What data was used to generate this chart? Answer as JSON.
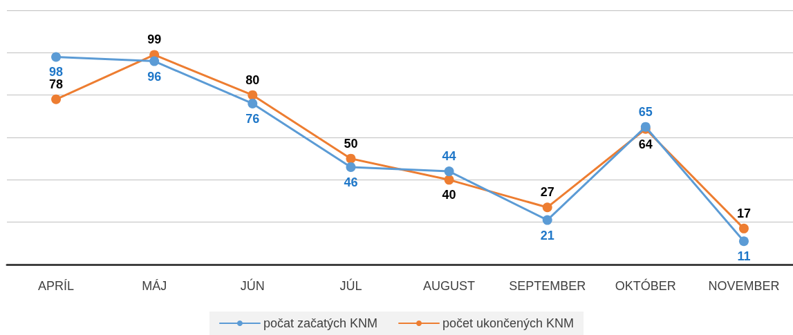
{
  "chart_data": {
    "type": "line",
    "categories": [
      "APRÍL",
      "MÁJ",
      "JÚN",
      "JÚL",
      "AUGUST",
      "SEPTEMBER",
      "OKTÓBER",
      "NOVEMBER"
    ],
    "series": [
      {
        "name": "počat začatých KNM",
        "color": "#5b9bd5",
        "values": [
          98,
          96,
          76,
          46,
          44,
          21,
          65,
          11
        ]
      },
      {
        "name": "počet ukončených KNM",
        "color": "#ed7d31",
        "values": [
          78,
          99,
          80,
          50,
          40,
          27,
          64,
          17
        ]
      }
    ],
    "ylim": [
      0,
      120
    ],
    "yticks": [
      {
        "value": 0,
        "label": null
      },
      {
        "value": 20,
        "label": null
      },
      {
        "value": 40,
        "label": null
      },
      {
        "value": 60,
        "label": null
      },
      {
        "value": 80,
        "label": null
      },
      {
        "value": 100,
        "label": null
      },
      {
        "value": 120,
        "label": null
      }
    ],
    "tick_labels": "x",
    "grid": "y",
    "legend": "bottom",
    "marker": "circle",
    "line_style": "solid",
    "data_labels": true
  }
}
